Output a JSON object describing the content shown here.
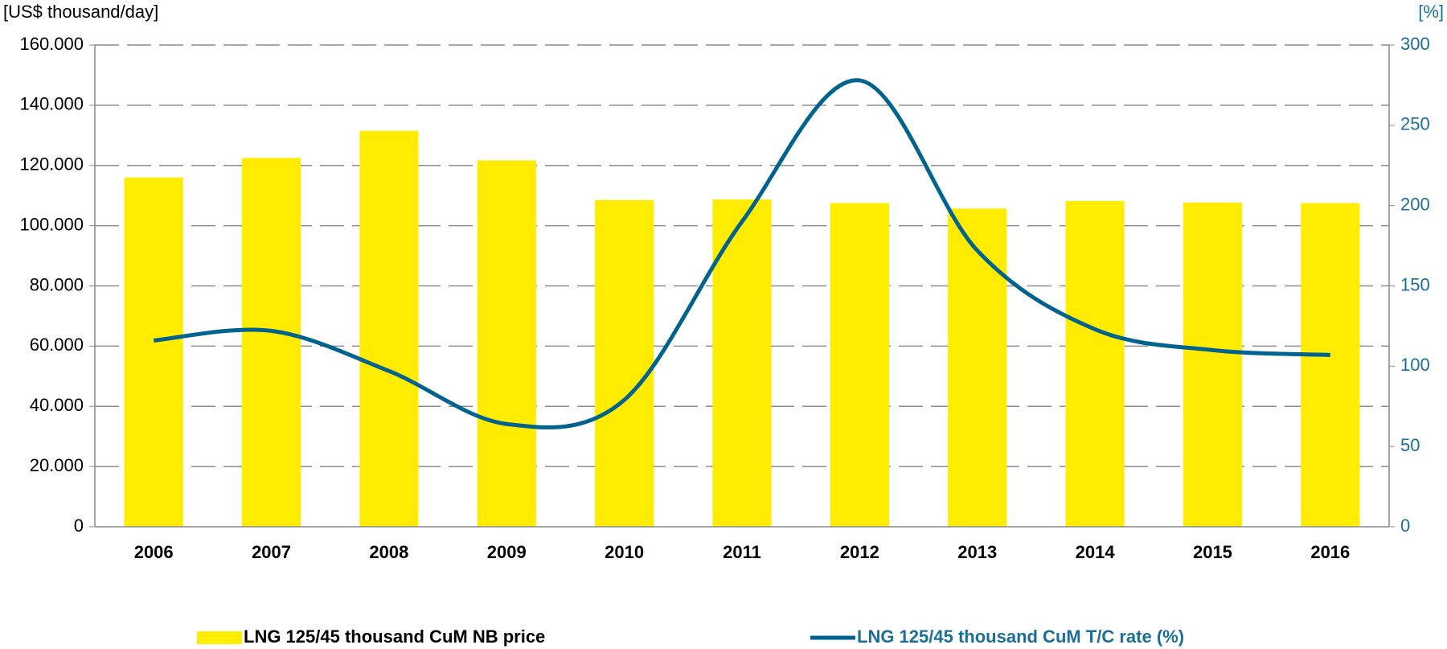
{
  "chart_data": {
    "type": "bar_line",
    "y_axis_label": "[US$ thousand/day]",
    "y2_axis_label": "[%]",
    "categories": [
      "2006",
      "2007",
      "2008",
      "2009",
      "2010",
      "2011",
      "2012",
      "2013",
      "2014",
      "2015",
      "2016"
    ],
    "series": [
      {
        "name": "LNG 125/45 thousand CuM NB price",
        "type": "bar",
        "color": "#ffec00",
        "values": [
          116000,
          122500,
          131500,
          121700,
          108500,
          108700,
          107500,
          105700,
          108200,
          107700,
          107500
        ]
      },
      {
        "name": "LNG 125/45 thousand CuM T/C rate (%)",
        "type": "line",
        "axis": "y2",
        "color": "#00628f",
        "values": [
          116,
          122,
          97,
          64,
          79,
          190,
          278,
          172,
          123,
          110,
          107
        ]
      }
    ],
    "ylim": [
      0,
      160000
    ],
    "yticks": [
      0,
      {
        "value": 20000,
        "label": "20.000"
      },
      {
        "value": 40000,
        "label": "40.000"
      },
      {
        "value": 60000,
        "label": "60.000"
      },
      {
        "value": 80000,
        "label": "80.000"
      },
      {
        "value": 100000,
        "label": "100.000"
      },
      {
        "value": 120000,
        "label": "120.000"
      },
      {
        "value": 140000,
        "label": "140.000"
      },
      {
        "value": 160000,
        "label": "160.000"
      }
    ],
    "y2lim": [
      0,
      300
    ],
    "y2ticks": [
      0,
      50,
      100,
      150,
      200,
      250,
      300
    ],
    "grid": true
  }
}
